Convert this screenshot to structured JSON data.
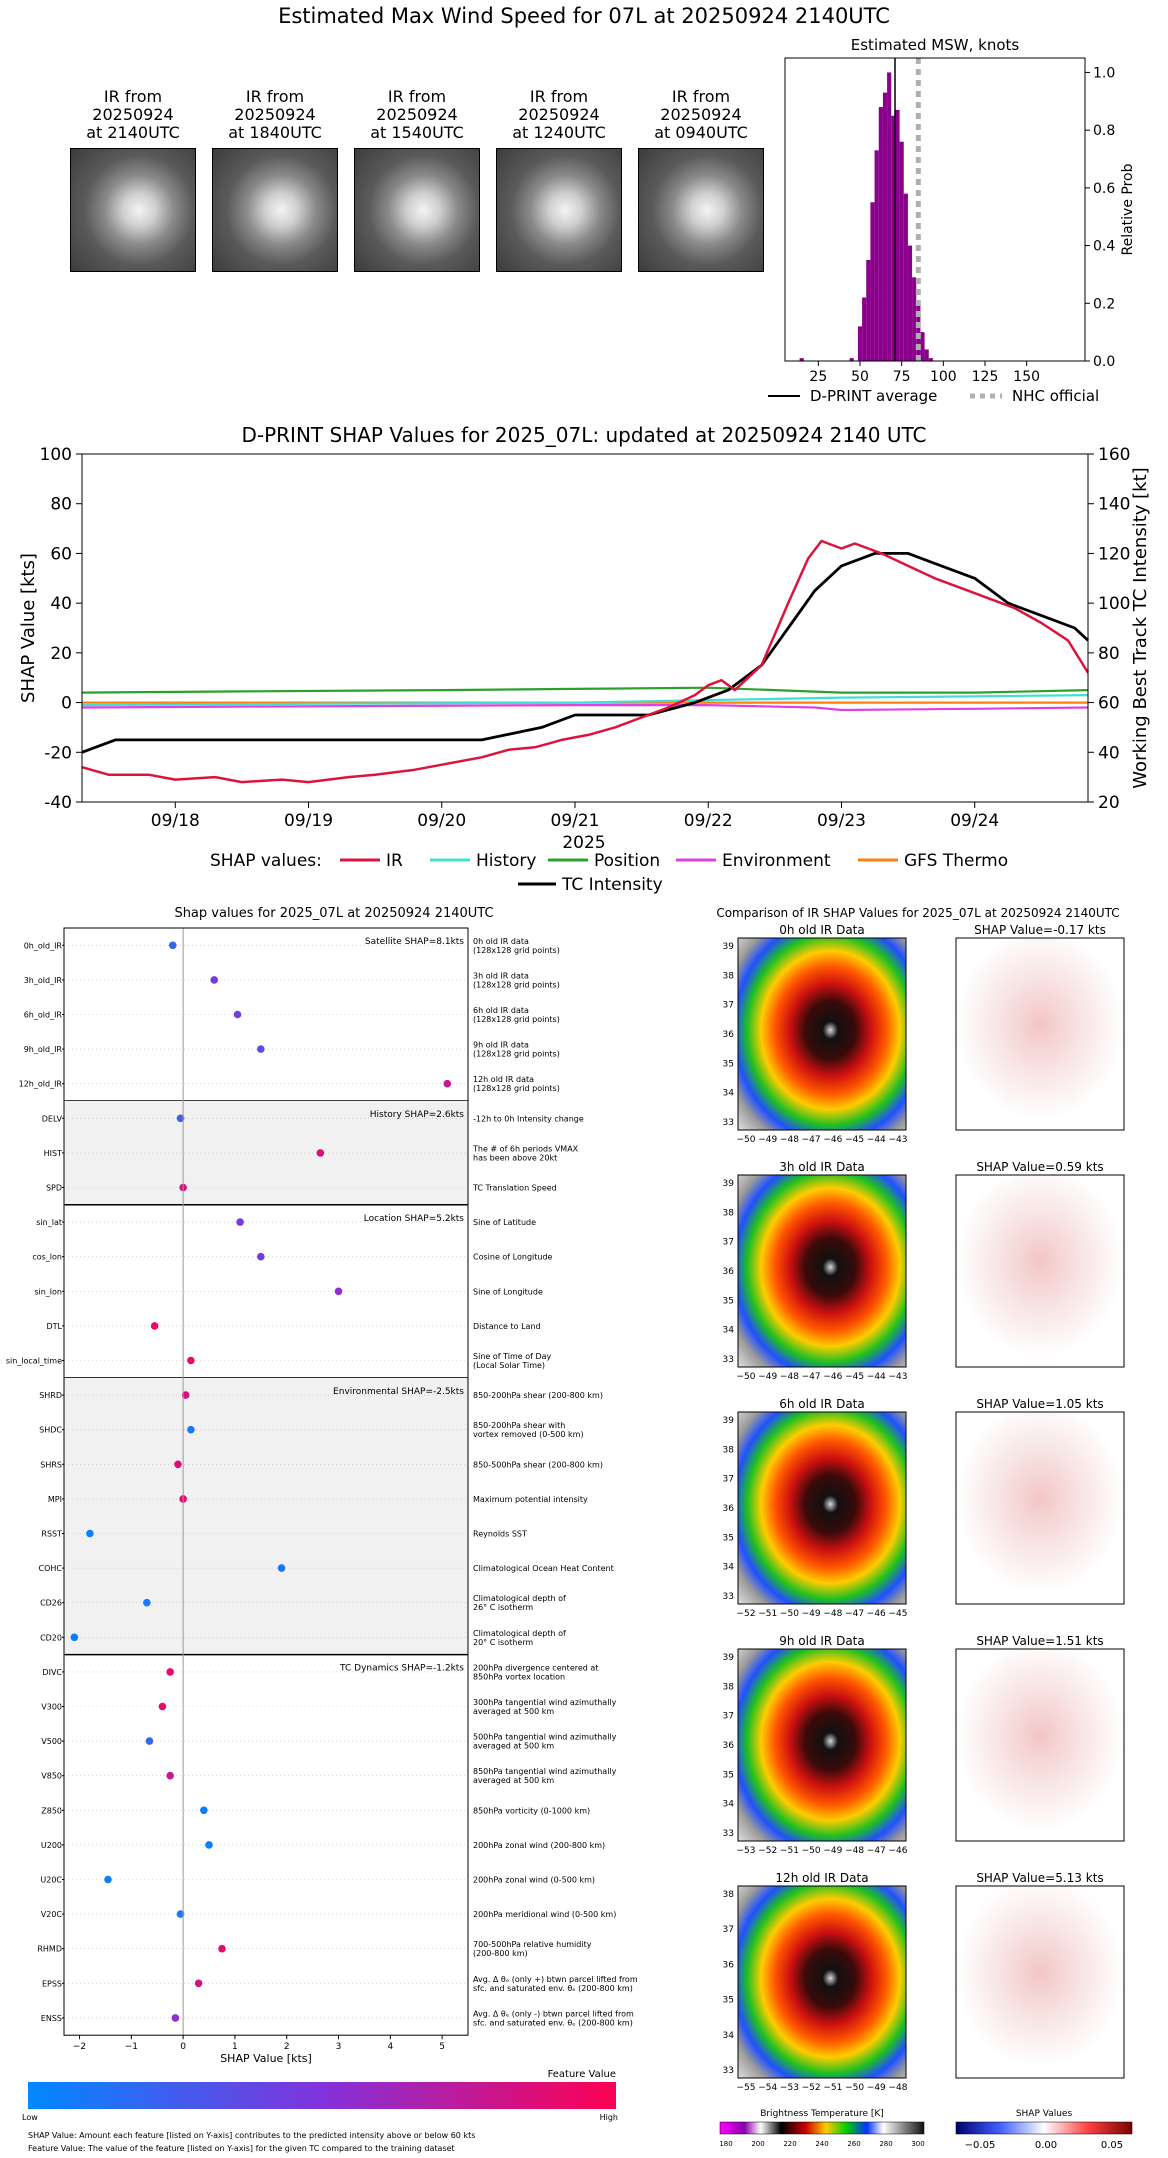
{
  "page_title": "Estimated Max Wind Speed for 07L at 20250924 2140UTC",
  "thumbnails": [
    {
      "line1": "IR from",
      "line2": "20250924",
      "line3": "at 2140UTC"
    },
    {
      "line1": "IR from",
      "line2": "20250924",
      "line3": "at 1840UTC"
    },
    {
      "line1": "IR from",
      "line2": "20250924",
      "line3": "at 1540UTC"
    },
    {
      "line1": "IR from",
      "line2": "20250924",
      "line3": "at 1240UTC"
    },
    {
      "line1": "IR from",
      "line2": "20250924",
      "line3": "at 0940UTC"
    }
  ],
  "colors": {
    "purple": "#8b008b",
    "ir": "#dc143c",
    "history": "#40e0d0",
    "position": "#2ca02c",
    "environment": "#e040e0",
    "gfs": "#ff7f0e",
    "tc": "#000000",
    "nhc": "#b0b0b0"
  },
  "chart_data": [
    {
      "type": "bar",
      "title": "Estimated MSW, knots",
      "ylabel": "Relative Prob",
      "xlim": [
        5,
        185
      ],
      "ylim": [
        0,
        1.05
      ],
      "xticks": [
        "25",
        "50",
        "75",
        "100",
        "125",
        "150"
      ],
      "yticks": [
        "0.0",
        "0.2",
        "0.4",
        "0.6",
        "0.8",
        "1.0"
      ],
      "bin_width": 2.5,
      "x": [
        15,
        45,
        50,
        52.5,
        55,
        57.5,
        60,
        62.5,
        65,
        67.5,
        70,
        72.5,
        75,
        77.5,
        80,
        82.5,
        85,
        87.5,
        90,
        92.5
      ],
      "values": [
        0.01,
        0.01,
        0.12,
        0.22,
        0.35,
        0.55,
        0.73,
        0.88,
        0.93,
        1.0,
        0.85,
        0.87,
        0.76,
        0.58,
        0.4,
        0.29,
        0.2,
        0.1,
        0.04,
        0.01
      ],
      "dpri_average": 71,
      "nhc_official": 85,
      "legend": [
        "D-PRINT average",
        "NHC official"
      ]
    },
    {
      "type": "line",
      "title": "D-PRINT SHAP Values for 2025_07L: updated at 20250924 2140 UTC",
      "xlabel": "2025",
      "ylabel": "SHAP Value [kts]",
      "y2label": "Working Best Track TC Intensity [kt]",
      "ylim": [
        -40,
        100
      ],
      "y2lim": [
        20,
        160
      ],
      "yticks": [
        "-40",
        "-20",
        "0",
        "20",
        "40",
        "60",
        "80",
        "100"
      ],
      "y2ticks": [
        "20",
        "40",
        "60",
        "80",
        "100",
        "120",
        "140",
        "160"
      ],
      "xticks": [
        "09/18",
        "09/19",
        "09/20",
        "09/21",
        "09/22",
        "09/23",
        "09/24"
      ],
      "xlim_days": [
        17.3,
        24.85
      ],
      "legend_prefix": "SHAP values:",
      "series": [
        {
          "name": "IR",
          "x": [
            17.3,
            17.5,
            17.8,
            18.0,
            18.3,
            18.5,
            18.8,
            19.0,
            19.3,
            19.5,
            19.8,
            20.0,
            20.3,
            20.5,
            20.7,
            20.9,
            21.1,
            21.3,
            21.5,
            21.7,
            21.9,
            22.0,
            22.1,
            22.2,
            22.4,
            22.6,
            22.75,
            22.85,
            23.0,
            23.1,
            23.3,
            23.5,
            23.7,
            23.9,
            24.1,
            24.3,
            24.5,
            24.7,
            24.85
          ],
          "values": [
            -26,
            -29,
            -29,
            -31,
            -30,
            -32,
            -31,
            -32,
            -30,
            -29,
            -27,
            -25,
            -22,
            -19,
            -18,
            -15,
            -13,
            -10,
            -6,
            -2,
            3,
            7,
            9,
            5,
            15,
            40,
            58,
            65,
            62,
            64,
            60,
            55,
            50,
            46,
            42,
            38,
            32,
            25,
            12
          ]
        },
        {
          "name": "History",
          "x": [
            17.3,
            19.0,
            21.0,
            22.0,
            23.0,
            24.0,
            24.85
          ],
          "values": [
            -1,
            -0.5,
            0,
            1,
            2,
            2.5,
            3
          ]
        },
        {
          "name": "Position",
          "x": [
            17.3,
            18.5,
            20.0,
            21.0,
            22.0,
            22.5,
            23.0,
            24.0,
            24.85
          ],
          "values": [
            4,
            4.5,
            5,
            5.5,
            6,
            5,
            4,
            4,
            5
          ]
        },
        {
          "name": "Environment",
          "x": [
            17.3,
            19.0,
            21.0,
            22.0,
            22.8,
            23.0,
            24.0,
            24.85
          ],
          "values": [
            -2,
            -1.5,
            -1,
            -1,
            -2,
            -3,
            -2.5,
            -2
          ]
        },
        {
          "name": "GFS Thermo",
          "x": [
            17.3,
            19.0,
            21.0,
            23.0,
            24.85
          ],
          "values": [
            0,
            0,
            0,
            0,
            0
          ]
        },
        {
          "name": "TC Intensity",
          "axis": "y2",
          "x": [
            17.3,
            17.55,
            20.3,
            20.75,
            21.0,
            21.25,
            21.55,
            21.9,
            22.15,
            22.4,
            22.6,
            22.8,
            23.0,
            23.25,
            23.5,
            23.75,
            24.0,
            24.25,
            24.5,
            24.75,
            24.85
          ],
          "values": [
            40,
            45,
            45,
            50,
            55,
            55,
            55,
            60,
            65,
            75,
            90,
            105,
            115,
            120,
            120,
            115,
            110,
            100,
            95,
            90,
            85
          ]
        }
      ]
    },
    {
      "type": "scatter",
      "title": "Shap values for 2025_07L at 20250924 2140UTC",
      "xlabel": "SHAP Value [kts]",
      "xlim": [
        -2.3,
        5.5
      ],
      "xticks": [
        "-2",
        "-1",
        "0",
        "1",
        "2",
        "3",
        "4",
        "5"
      ],
      "groups": [
        {
          "label": "Satellite SHAP=8.1kts",
          "shade": false,
          "features": [
            {
              "name": "0h_old_IR",
              "value": -0.2,
              "fv": 0.2,
              "desc": [
                "0h old IR data",
                "(128x128 grid points)"
              ]
            },
            {
              "name": "3h_old_IR",
              "value": 0.6,
              "fv": 0.45,
              "desc": [
                "3h old IR data",
                "(128x128 grid points)"
              ]
            },
            {
              "name": "6h_old_IR",
              "value": 1.05,
              "fv": 0.45,
              "desc": [
                "6h old IR data",
                "(128x128 grid points)"
              ]
            },
            {
              "name": "9h_old_IR",
              "value": 1.5,
              "fv": 0.35,
              "desc": [
                "9h old IR data",
                "(128x128 grid points)"
              ]
            },
            {
              "name": "12h_old_IR",
              "value": 5.1,
              "fv": 0.75,
              "desc": [
                "12h old IR data",
                "(128x128 grid points)"
              ]
            }
          ]
        },
        {
          "label": "History SHAP=2.6kts",
          "shade": true,
          "features": [
            {
              "name": "DELV",
              "value": -0.05,
              "fv": 0.25,
              "desc": [
                "-12h to 0h Intensity change"
              ]
            },
            {
              "name": "HIST",
              "value": 2.65,
              "fv": 0.85,
              "desc": [
                "The # of 6h periods VMAX",
                "has been above 20kt"
              ]
            },
            {
              "name": "SPD",
              "value": 0.0,
              "fv": 0.85,
              "desc": [
                "TC Translation Speed"
              ]
            }
          ]
        },
        {
          "label": "Location SHAP=5.2kts",
          "shade": false,
          "features": [
            {
              "name": "sin_lat",
              "value": 1.1,
              "fv": 0.45,
              "desc": [
                "Sine of Latitude"
              ]
            },
            {
              "name": "cos_lon",
              "value": 1.5,
              "fv": 0.45,
              "desc": [
                "Cosine of Longitude"
              ]
            },
            {
              "name": "sin_lon",
              "value": 3.0,
              "fv": 0.55,
              "desc": [
                "Sine of Longitude"
              ]
            },
            {
              "name": "DTL",
              "value": -0.55,
              "fv": 0.9,
              "desc": [
                "Distance to Land"
              ]
            },
            {
              "name": "sin_local_time",
              "value": 0.15,
              "fv": 0.9,
              "desc": [
                "Sine of Time of Day",
                "(Local Solar Time)"
              ]
            }
          ]
        },
        {
          "label": "Environmental SHAP=-2.5kts",
          "shade": true,
          "features": [
            {
              "name": "SHRD",
              "value": 0.05,
              "fv": 0.85,
              "desc": [
                "850-200hPa shear (200-800 km)"
              ]
            },
            {
              "name": "SHDC",
              "value": 0.15,
              "fv": 0.1,
              "desc": [
                "850-200hPa shear with",
                "vortex removed (0-500 km)"
              ]
            },
            {
              "name": "SHRS",
              "value": -0.1,
              "fv": 0.85,
              "desc": [
                "850-500hPa shear (200-800 km)"
              ]
            },
            {
              "name": "MPI",
              "value": 0.0,
              "fv": 0.9,
              "desc": [
                "Maximum potential intensity"
              ]
            },
            {
              "name": "RSST",
              "value": -1.8,
              "fv": 0.05,
              "desc": [
                "Reynolds SST"
              ]
            },
            {
              "name": "COHC",
              "value": 1.9,
              "fv": 0.1,
              "desc": [
                "Climatological Ocean Heat Content"
              ]
            },
            {
              "name": "CD26",
              "value": -0.7,
              "fv": 0.1,
              "desc": [
                "Climatological depth of",
                "26° C isotherm"
              ]
            },
            {
              "name": "CD20",
              "value": -2.1,
              "fv": 0.05,
              "desc": [
                "Climatological depth of",
                "20° C isotherm"
              ]
            }
          ]
        },
        {
          "label": "TC Dynamics SHAP=-1.2kts",
          "shade": false,
          "features": [
            {
              "name": "DIVC",
              "value": -0.25,
              "fv": 0.9,
              "desc": [
                "200hPa divergence centered at",
                "850hPa vortex location"
              ]
            },
            {
              "name": "V300",
              "value": -0.4,
              "fv": 0.9,
              "desc": [
                "300hPa tangential wind azimuthally",
                "averaged at 500 km"
              ]
            },
            {
              "name": "V500",
              "value": -0.65,
              "fv": 0.2,
              "desc": [
                "500hPa tangential wind azimuthally",
                "averaged at 500 km"
              ]
            },
            {
              "name": "V850",
              "value": -0.25,
              "fv": 0.75,
              "desc": [
                "850hPa tangential wind azimuthally",
                "averaged at 500 km"
              ]
            },
            {
              "name": "Z850",
              "value": 0.4,
              "fv": 0.05,
              "desc": [
                "850hPa vorticity (0-1000 km)"
              ]
            },
            {
              "name": "U200",
              "value": 0.5,
              "fv": 0.05,
              "desc": [
                "200hPa zonal wind (200-800 km)"
              ]
            },
            {
              "name": "U20C",
              "value": -1.45,
              "fv": 0.05,
              "desc": [
                "200hPa zonal wind (0-500 km)"
              ]
            },
            {
              "name": "V20C",
              "value": -0.05,
              "fv": 0.1,
              "desc": [
                "200hPa meridional wind (0-500 km)"
              ]
            },
            {
              "name": "RHMD",
              "value": 0.75,
              "fv": 0.9,
              "desc": [
                "700-500hPa relative humidity",
                "(200-800 km)"
              ]
            },
            {
              "name": "EPSS",
              "value": 0.3,
              "fv": 0.8,
              "desc": [
                "Avg. Δ θₑ (only +) btwn parcel lifted from",
                "sfc. and saturated env. θₑ (200-800 km)"
              ]
            },
            {
              "name": "ENSS",
              "value": -0.15,
              "fv": 0.55,
              "desc": [
                "Avg. Δ θₑ (only -) btwn parcel lifted from",
                "sfc. and saturated env. θₑ (200-800 km)"
              ]
            }
          ]
        }
      ],
      "colorbar": {
        "label": "Feature Value",
        "low": "Low",
        "high": "High"
      },
      "footnote1": "SHAP Value: Amount each feature [listed on Y-axis] contributes to the predicted intensity above or below 60 kts",
      "footnote2": "Feature Value: The value of the feature [listed on Y-axis] for the given TC compared to the training dataset"
    }
  ],
  "ir_comparison": {
    "title": "Comparison of IR SHAP Values for 2025_07L at 20250924 2140UTC",
    "panels": [
      {
        "ir_title": "0h old IR Data",
        "shap_title": "SHAP Value=-0.17 kts",
        "yticks": [
          "39",
          "38",
          "37",
          "36",
          "35",
          "34",
          "33"
        ],
        "xticks": [
          "−50",
          "−49",
          "−48",
          "−47",
          "−46",
          "−45",
          "−44",
          "−43"
        ]
      },
      {
        "ir_title": "3h old IR Data",
        "shap_title": "SHAP Value=0.59 kts",
        "yticks": [
          "39",
          "38",
          "37",
          "36",
          "35",
          "34",
          "33"
        ],
        "xticks": [
          "−50",
          "−49",
          "−48",
          "−47",
          "−46",
          "−45",
          "−44",
          "−43"
        ]
      },
      {
        "ir_title": "6h old IR Data",
        "shap_title": "SHAP Value=1.05 kts",
        "yticks": [
          "39",
          "38",
          "37",
          "36",
          "35",
          "34",
          "33"
        ],
        "xticks": [
          "−52",
          "−51",
          "−50",
          "−49",
          "−48",
          "−47",
          "−46",
          "−45"
        ]
      },
      {
        "ir_title": "9h old IR Data",
        "shap_title": "SHAP Value=1.51 kts",
        "yticks": [
          "39",
          "38",
          "37",
          "36",
          "35",
          "34",
          "33"
        ],
        "xticks": [
          "−53",
          "−52",
          "−51",
          "−50",
          "−49",
          "−48",
          "−47",
          "−46"
        ]
      },
      {
        "ir_title": "12h old IR Data",
        "shap_title": "SHAP Value=5.13 kts",
        "yticks": [
          "38",
          "37",
          "36",
          "35",
          "34",
          "33"
        ],
        "xticks": [
          "−55",
          "−54",
          "−53",
          "−52",
          "−51",
          "−50",
          "−49",
          "−48"
        ]
      }
    ],
    "bt_label": "Brightness Temperature [K]",
    "bt_ticks": [
      "180",
      "200",
      "220",
      "240",
      "260",
      "280",
      "300"
    ],
    "shap_label": "SHAP Values",
    "shap_ticks": [
      "−0.05",
      "0.00",
      "0.05"
    ]
  }
}
